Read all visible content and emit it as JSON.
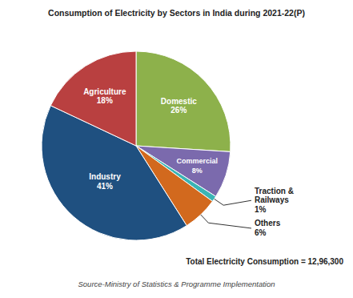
{
  "chart_data": {
    "type": "pie",
    "title": "Consumption of Electricity by Sectors in India during 2021-22(P)",
    "categories": [
      "Domestic",
      "Commercial",
      "Traction &\nRailways",
      "Others",
      "Industry",
      "Agriculture"
    ],
    "values": [
      26,
      8,
      1,
      6,
      41,
      18
    ],
    "value_labels": [
      "26%",
      "8%",
      "1%",
      "6%",
      "41%",
      "18%"
    ],
    "colors": [
      "#8db14b",
      "#7b6aad",
      "#3ab5b5",
      "#d2691e",
      "#1f5080",
      "#b94040"
    ],
    "data_labels": true,
    "annotations": [
      "Total  Electricity Consumption =  12,96,300",
      "Source-Ministry of Statistics & Programme Implementation"
    ]
  }
}
